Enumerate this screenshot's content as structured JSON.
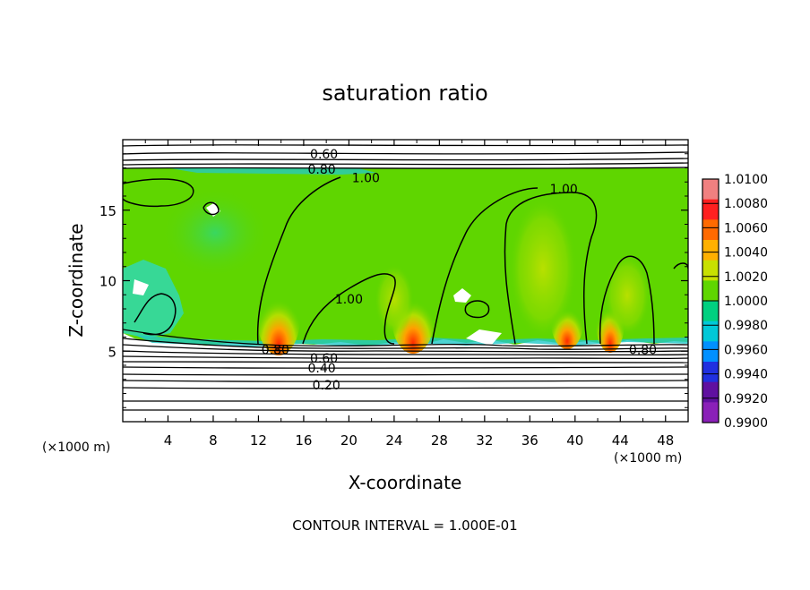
{
  "chart_data": {
    "type": "heatmap",
    "title": "saturation ratio",
    "xlabel": "X-coordinate",
    "ylabel": "Z-coordinate",
    "x_unit_label": "(×1000 m)",
    "z_unit_label": "(×1000 m)",
    "xlim": [
      0,
      50
    ],
    "ylim": [
      0,
      20
    ],
    "x_ticks": [
      4,
      8,
      12,
      16,
      20,
      24,
      28,
      32,
      36,
      40,
      44,
      48
    ],
    "y_ticks": [
      5,
      10,
      15
    ],
    "colorbar": {
      "levels": [
        "1.0100",
        "1.0080",
        "1.0060",
        "1.0040",
        "1.0020",
        "1.0000",
        "0.9980",
        "0.9960",
        "0.9940",
        "0.9920",
        "0.9900"
      ],
      "colors": [
        "#f08080",
        "#ff2020",
        "#ff6a00",
        "#ffb000",
        "#c8e000",
        "#5fd600",
        "#00d080",
        "#00c8d8",
        "#0090ff",
        "#2030e0",
        "#6010a0",
        "#8a20b8"
      ]
    },
    "contour_labels": [
      {
        "text": "0.60",
        "x": 17.8,
        "z": 19.0
      },
      {
        "text": "0.80",
        "x": 17.6,
        "z": 17.9
      },
      {
        "text": "1.00",
        "x": 21.5,
        "z": 17.3
      },
      {
        "text": "1.00",
        "x": 39.0,
        "z": 16.5
      },
      {
        "text": "1.00",
        "x": 20.0,
        "z": 8.7
      },
      {
        "text": "0.80",
        "x": 13.5,
        "z": 5.1
      },
      {
        "text": "0.80",
        "x": 46.0,
        "z": 5.1
      },
      {
        "text": "0.60",
        "x": 17.8,
        "z": 4.5
      },
      {
        "text": "0.40",
        "x": 17.6,
        "z": 3.8
      },
      {
        "text": "0.20",
        "x": 18.0,
        "z": 2.6
      }
    ],
    "footer": "CONTOUR INTERVAL = 1.000E-01"
  }
}
